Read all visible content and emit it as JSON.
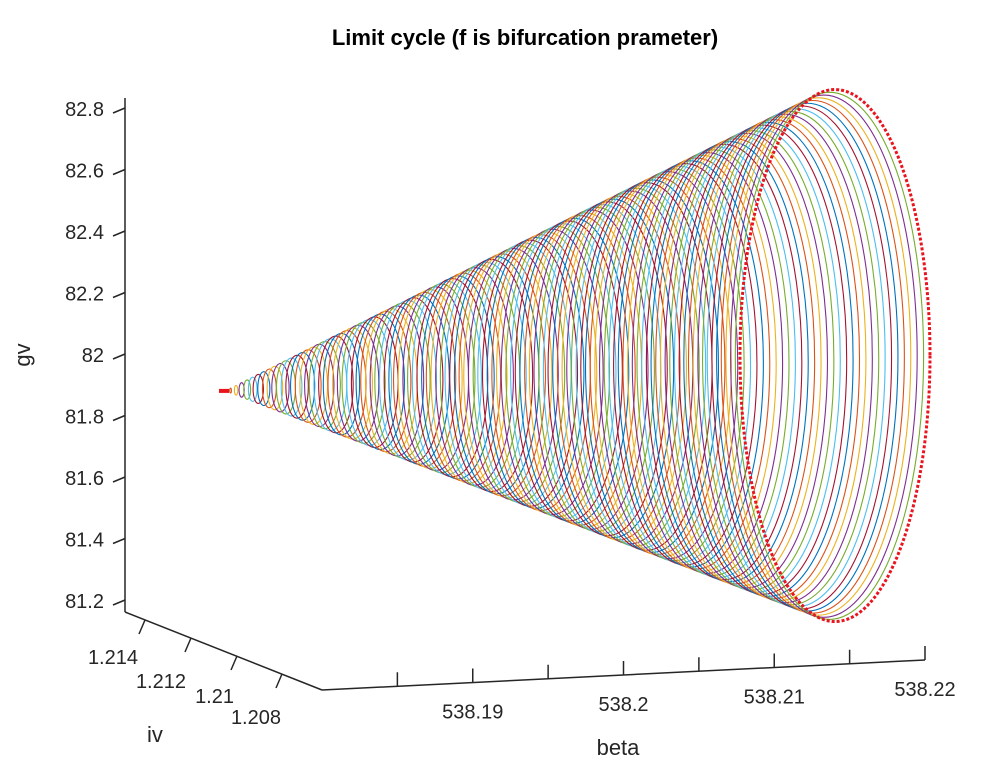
{
  "chart_data": {
    "type": "line",
    "plot_kind": "3d-limit-cycle-family",
    "title": "Limit cycle (f is bifurcation prameter)",
    "xlabel": "beta",
    "ylabel": "iv",
    "zlabel": "gv",
    "x_ticks": [
      "538.19",
      "538.2",
      "538.21",
      "538.22"
    ],
    "y_ticks": [
      "1.214",
      "1.212",
      "1.21",
      "1.208"
    ],
    "z_ticks": [
      "82.8",
      "82.6",
      "82.4",
      "82.2",
      "82",
      "81.8",
      "81.6",
      "81.4",
      "81.2"
    ],
    "xlim": [
      538.18,
      538.22
    ],
    "zlim": [
      81.15,
      82.85
    ],
    "apex": {
      "beta": 538.18,
      "gv": 81.88
    },
    "base": {
      "beta": 538.21,
      "gv_min": 81.13,
      "gv_max": 82.86
    },
    "cycle_count": 110,
    "grid": false,
    "legend": "none",
    "cycle_colors": [
      "#0072BD",
      "#D95319",
      "#EDB120",
      "#7E2F8E",
      "#77AC30",
      "#4DBEEE",
      "#A2142F"
    ],
    "final_cycle_color": "#e8141e"
  }
}
